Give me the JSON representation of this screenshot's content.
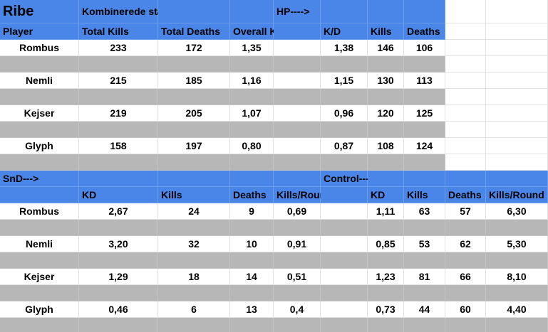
{
  "top": {
    "header": [
      "Ribe",
      "Kombinerede stats",
      null,
      null,
      "HP---->",
      null,
      null,
      null
    ],
    "columns": [
      "Player",
      "Total Kills",
      "Total Deaths",
      "Overall K/D",
      null,
      "K/D",
      "Kills",
      "Deaths"
    ],
    "rows": [
      [
        "Rombus",
        "233",
        "172",
        "1,35",
        null,
        "1,38",
        "146",
        "106"
      ],
      [
        "Nemli",
        "215",
        "185",
        "1,16",
        null,
        "1,15",
        "130",
        "113"
      ],
      [
        "Kejser",
        "219",
        "205",
        "1,07",
        null,
        "0,96",
        "120",
        "125"
      ],
      [
        "Glyph",
        "158",
        "197",
        "0,80",
        null,
        "0,87",
        "108",
        "124"
      ]
    ]
  },
  "bottom": {
    "header": [
      "SnD--->",
      null,
      null,
      null,
      null,
      "Control--->",
      null,
      null,
      null,
      null
    ],
    "columns": [
      null,
      "KD",
      "Kills",
      "Deaths",
      "Kills/Round",
      null,
      "KD",
      "Kills",
      "Deaths",
      "Kills/Round"
    ],
    "rows": [
      [
        "Rombus",
        "2,67",
        "24",
        "9",
        "0,69",
        null,
        "1,11",
        "63",
        "57",
        "6,30"
      ],
      [
        "Nemli",
        "3,20",
        "32",
        "10",
        "0,91",
        null,
        "0,85",
        "53",
        "62",
        "5,30"
      ],
      [
        "Kejser",
        "1,29",
        "18",
        "14",
        "0,51",
        null,
        "1,23",
        "81",
        "66",
        "8,10"
      ],
      [
        "Glyph",
        "0,46",
        "6",
        "13",
        "0,4",
        null,
        "0,73",
        "44",
        "60",
        "4,40"
      ]
    ]
  }
}
